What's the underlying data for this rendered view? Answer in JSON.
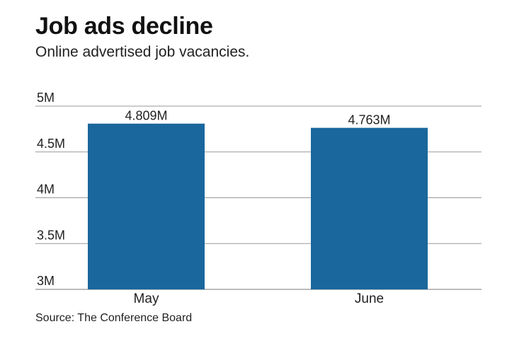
{
  "chart_data": {
    "type": "bar",
    "title": "Job ads decline",
    "subtitle": "Online advertised job vacancies.",
    "categories": [
      "May",
      "June"
    ],
    "values": [
      4.809,
      4.763
    ],
    "data_labels": [
      "4.809M",
      "4.763M"
    ],
    "yticks": [
      {
        "value": 3,
        "label": "3M"
      },
      {
        "value": 3.5,
        "label": "3.5M"
      },
      {
        "value": 4,
        "label": "4M"
      },
      {
        "value": 4.5,
        "label": "4.5M"
      },
      {
        "value": 5,
        "label": "5M"
      }
    ],
    "ylim": [
      3,
      5
    ],
    "grid": true,
    "bar_color": "#1a679d",
    "source": "Source: The Conference Board"
  }
}
